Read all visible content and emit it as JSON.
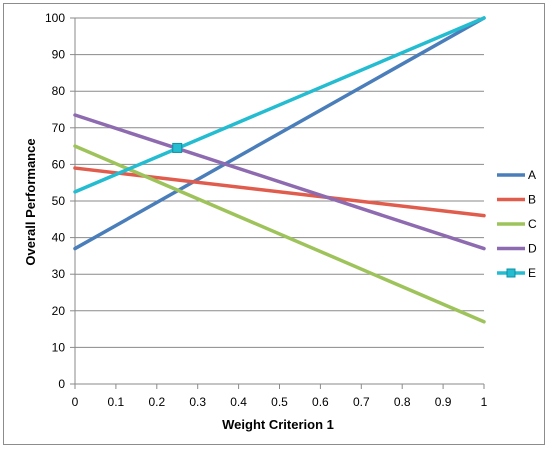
{
  "chart_data": {
    "type": "line",
    "title": "",
    "xlabel": "Weight Criterion 1",
    "ylabel": "Overall Performance",
    "x": [
      0,
      1
    ],
    "xlim": [
      0,
      1
    ],
    "ylim": [
      0,
      100
    ],
    "xticks": [
      "0",
      "0.1",
      "0.2",
      "0.3",
      "0.4",
      "0.5",
      "0.6",
      "0.7",
      "0.8",
      "0.9",
      "1"
    ],
    "yticks": [
      "0",
      "10",
      "20",
      "30",
      "40",
      "50",
      "60",
      "70",
      "80",
      "90",
      "100"
    ],
    "grid": "horizontal",
    "legend": "right",
    "series": [
      {
        "name": "A",
        "color": "#4a7eba",
        "values": [
          37,
          100
        ]
      },
      {
        "name": "B",
        "color": "#e05c4d",
        "values": [
          59,
          46
        ]
      },
      {
        "name": "C",
        "color": "#9dc35a",
        "values": [
          65,
          17
        ]
      },
      {
        "name": "D",
        "color": "#8e6bb0",
        "values": [
          73.5,
          37
        ]
      },
      {
        "name": "E",
        "color": "#23bcd0",
        "values": [
          52.5,
          100
        ],
        "marker": {
          "x": 0.25,
          "y": 64.5
        }
      }
    ]
  }
}
